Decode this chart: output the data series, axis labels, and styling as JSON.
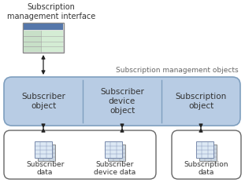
{
  "bg_color": "#ffffff",
  "box_fill": "#b8cce4",
  "box_edge": "#7f9fbf",
  "small_box_fill": "#ffffff",
  "small_box_edge": "#666666",
  "text_color": "#333333",
  "label_color": "#666666",
  "title": "Subscription\nmanagement interface",
  "mgmt_label": "Subscription management objects",
  "objects": [
    "Subscriber\nobject",
    "Subscriber\ndevice\nobject",
    "Subscription\nobject"
  ],
  "data_labels": [
    "Subscriber\ndata",
    "Subscriber\ndevice data",
    "Subscription\ndata"
  ],
  "fig_w": 3.11,
  "fig_h": 2.33,
  "dpi": 100
}
